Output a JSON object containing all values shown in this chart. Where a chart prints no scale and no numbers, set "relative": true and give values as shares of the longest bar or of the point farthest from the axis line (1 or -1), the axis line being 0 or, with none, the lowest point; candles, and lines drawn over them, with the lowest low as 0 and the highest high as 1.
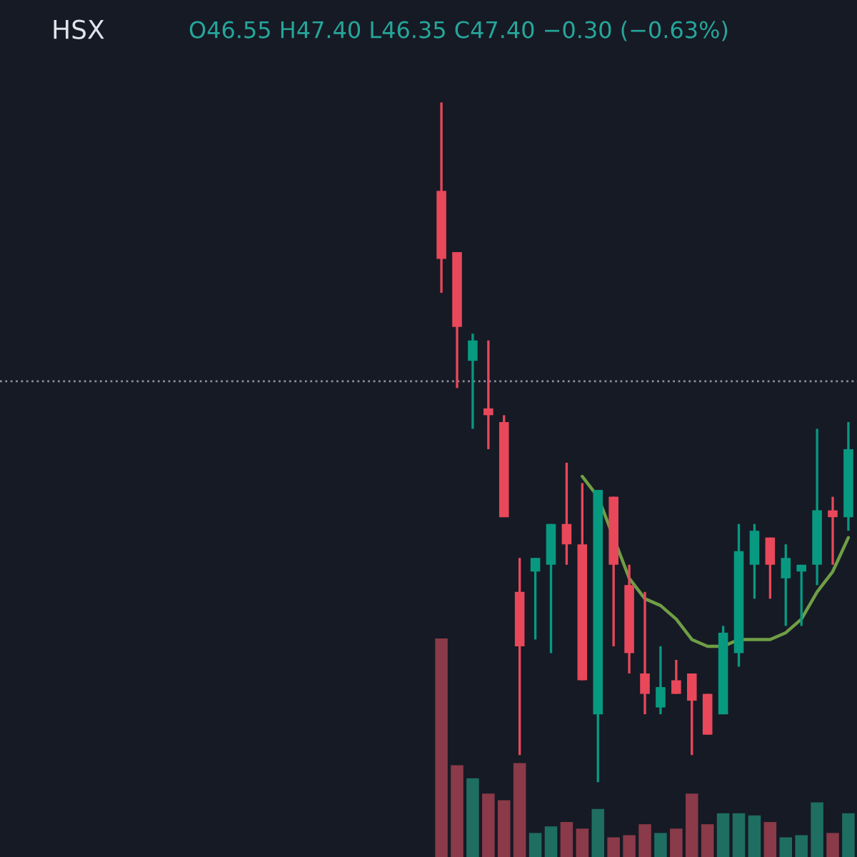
{
  "chart_data": [
    {
      "type": "candlestick",
      "relative": true,
      "categories": [
        null,
        null,
        null,
        null,
        null,
        null,
        null,
        null,
        null,
        null,
        null,
        null,
        null,
        null,
        null,
        null,
        null,
        null,
        null,
        null,
        null,
        null,
        null,
        null,
        null,
        null,
        null
      ],
      "ohlc": [
        [
          0.87,
          1,
          0.72,
          0.77
        ],
        [
          0.78,
          0.78,
          0.58,
          0.67
        ],
        [
          0.62,
          0.66,
          0.52,
          0.65
        ],
        [
          0.55,
          0.65,
          0.49,
          0.54
        ],
        [
          0.53,
          0.54,
          0.39,
          0.39
        ],
        [
          0.28,
          0.33,
          0.04,
          0.2
        ],
        [
          0.31,
          0.33,
          0.21,
          0.33
        ],
        [
          0.32,
          0.38,
          0.19,
          0.38
        ],
        [
          0.38,
          0.47,
          0.32,
          0.35
        ],
        [
          0.35,
          0.44,
          0.15,
          0.15
        ],
        [
          0.1,
          0.43,
          0,
          0.43
        ],
        [
          0.42,
          0.42,
          0.2,
          0.32
        ],
        [
          0.29,
          0.32,
          0.16,
          0.19
        ],
        [
          0.16,
          0.28,
          0.1,
          0.13
        ],
        [
          0.11,
          0.2,
          0.1,
          0.14
        ],
        [
          0.15,
          0.18,
          0.13,
          0.13
        ],
        [
          0.16,
          0.16,
          0.04,
          0.12
        ],
        [
          0.13,
          0.13,
          0.07,
          0.07
        ],
        [
          0.1,
          0.23,
          0.1,
          0.22
        ],
        [
          0.19,
          0.38,
          0.17,
          0.34
        ],
        [
          0.32,
          0.38,
          0.27,
          0.37
        ],
        [
          0.36,
          0.36,
          0.27,
          0.32
        ],
        [
          0.3,
          0.35,
          0.23,
          0.33
        ],
        [
          0.31,
          0.32,
          0.23,
          0.32
        ],
        [
          0.32,
          0.52,
          0.29,
          0.4
        ],
        [
          0.4,
          0.42,
          0.32,
          0.39
        ],
        [
          0.39,
          0.53,
          0.37,
          0.49
        ]
      ],
      "colors": [
        "#e8485a",
        "#e8485a",
        "#089981",
        "#e8485a",
        "#e8485a",
        "#e8485a",
        "#089981",
        "#089981",
        "#e8485a",
        "#e8485a",
        "#089981",
        "#e8485a",
        "#e8485a",
        "#e8485a",
        "#089981",
        "#e8485a",
        "#e8485a",
        "#e8485a",
        "#089981",
        "#089981",
        "#089981",
        "#e8485a",
        "#089981",
        "#089981",
        "#089981",
        "#e8485a",
        "#089981"
      ],
      "series": [
        {
          "type": "line",
          "color": "#6f9e45",
          "values": [
            null,
            null,
            null,
            null,
            null,
            null,
            null,
            null,
            null,
            0.45,
            0.42,
            null,
            0.3,
            0.27,
            0.26,
            0.24,
            0.21,
            0.2,
            0.2,
            0.21,
            0.21,
            0.21,
            0.22,
            0.24,
            0.28,
            0.31,
            0.36
          ]
        }
      ],
      "ref_lines": [
        {
          "axis": "y",
          "value": 0.59,
          "color": "#8a8f9c",
          "line_style": "dotted"
        }
      ],
      "annotations": [
        "HSX",
        "O46.55 H47.40 L46.35 C47.40 −0.30 (−0.63%)"
      ]
    },
    {
      "type": "bar",
      "relative": true,
      "categories": [
        null,
        null,
        null,
        null,
        null,
        null,
        null,
        null,
        null,
        null,
        null,
        null,
        null,
        null,
        null,
        null,
        null,
        null,
        null,
        null,
        null,
        null,
        null,
        null,
        null,
        null,
        null
      ],
      "colors": [
        "#8a3a48",
        "#8a3a48",
        "#1f6e62",
        "#8a3a48",
        "#8a3a48",
        "#8a3a48",
        "#1f6e62",
        "#1f6e62",
        "#8a3a48",
        "#8a3a48",
        "#1f6e62",
        "#8a3a48",
        "#8a3a48",
        "#8a3a48",
        "#1f6e62",
        "#8a3a48",
        "#8a3a48",
        "#8a3a48",
        "#1f6e62",
        "#1f6e62",
        "#1f6e62",
        "#8a3a48",
        "#1f6e62",
        "#1f6e62",
        "#1f6e62",
        "#8a3a48",
        "#1f6e62"
      ],
      "values": [
        1,
        0.42,
        0.36,
        0.29,
        0.26,
        0.43,
        0.11,
        0.14,
        0.16,
        0.13,
        0.22,
        0.09,
        0.1,
        0.15,
        0.11,
        0.13,
        0.29,
        0.15,
        0.2,
        0.2,
        0.19,
        0.16,
        0.09,
        0.1,
        0.25,
        0.11,
        0.2
      ]
    }
  ]
}
